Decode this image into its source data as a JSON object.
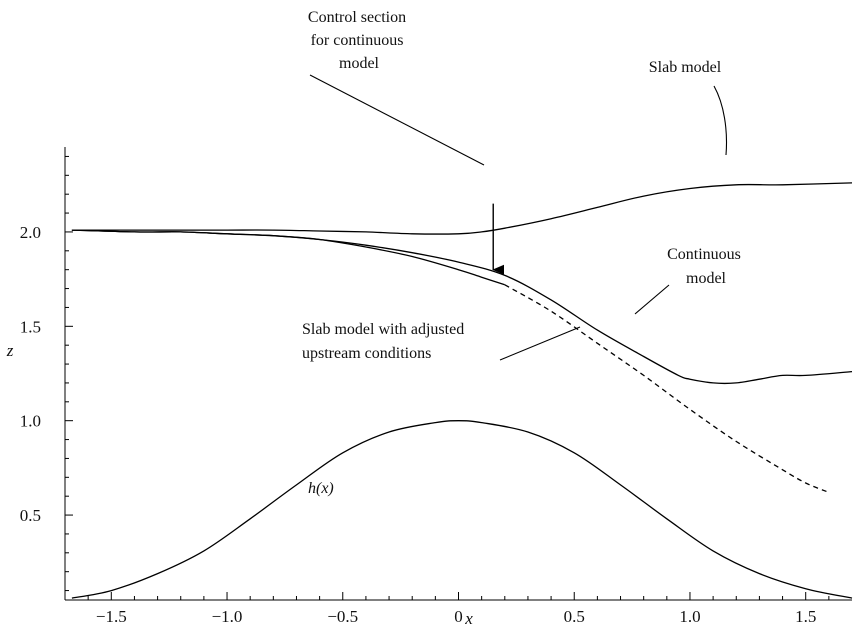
{
  "chart_data": {
    "type": "line",
    "xlabel": "x",
    "ylabel": "z",
    "xlim": [
      -1.7,
      1.7
    ],
    "ylim": [
      0.05,
      2.45
    ],
    "grid": false,
    "xticks": [
      {
        "value": -1.5,
        "label": "−1.5"
      },
      {
        "value": -1.0,
        "label": "−1.0"
      },
      {
        "value": -0.5,
        "label": "−0.5"
      },
      {
        "value": 0.0,
        "label": "0"
      },
      {
        "value": 0.5,
        "label": "0.5"
      },
      {
        "value": 1.0,
        "label": "1.0"
      },
      {
        "value": 1.5,
        "label": "1.5"
      }
    ],
    "yticks": [
      {
        "value": 0.5,
        "label": "0.5"
      },
      {
        "value": 1.0,
        "label": "1.0"
      },
      {
        "value": 1.5,
        "label": "1.5"
      },
      {
        "value": 2.0,
        "label": "2.0"
      }
    ],
    "series": [
      {
        "id": "slab",
        "style": "solid",
        "x": [
          -1.67,
          -1.4,
          -1.2,
          -1.0,
          -0.8,
          -0.6,
          -0.4,
          -0.2,
          0.0,
          0.1,
          0.2,
          0.4,
          0.6,
          0.8,
          1.0,
          1.2,
          1.4,
          1.7
        ],
        "y": [
          2.01,
          2.01,
          2.01,
          2.01,
          2.01,
          2.005,
          2.0,
          1.99,
          1.99,
          2.0,
          2.02,
          2.07,
          2.13,
          2.19,
          2.23,
          2.25,
          2.25,
          2.26
        ]
      },
      {
        "id": "continuous",
        "style": "solid",
        "x": [
          -1.67,
          -1.4,
          -1.2,
          -1.0,
          -0.8,
          -0.6,
          -0.4,
          -0.2,
          0.0,
          0.2,
          0.4,
          0.6,
          0.8,
          0.95,
          1.0,
          1.1,
          1.2,
          1.3,
          1.4,
          1.5,
          1.7
        ],
        "y": [
          2.01,
          2.0,
          2.0,
          1.99,
          1.98,
          1.96,
          1.93,
          1.89,
          1.84,
          1.77,
          1.64,
          1.48,
          1.34,
          1.24,
          1.22,
          1.2,
          1.2,
          1.22,
          1.24,
          1.24,
          1.26
        ]
      },
      {
        "id": "slab-adjusted",
        "style": "solid",
        "x": [
          -1.67,
          -1.4,
          -1.2,
          -1.0,
          -0.8,
          -0.6,
          -0.4,
          -0.2,
          0.0,
          0.1,
          0.2
        ],
        "y": [
          2.01,
          2.0,
          2.0,
          1.99,
          1.98,
          1.96,
          1.92,
          1.87,
          1.8,
          1.76,
          1.72
        ]
      },
      {
        "id": "slab-adjusted-dashed",
        "style": "dashed",
        "x": [
          0.2,
          0.4,
          0.6,
          0.8,
          1.0,
          1.2,
          1.4,
          1.5,
          1.6
        ],
        "y": [
          1.72,
          1.58,
          1.41,
          1.24,
          1.06,
          0.89,
          0.74,
          0.67,
          0.62
        ]
      },
      {
        "id": "topography",
        "style": "solid",
        "x": [
          -1.67,
          -1.5,
          -1.3,
          -1.1,
          -0.9,
          -0.7,
          -0.5,
          -0.3,
          -0.1,
          0.0,
          0.1,
          0.3,
          0.5,
          0.7,
          0.9,
          1.1,
          1.3,
          1.5,
          1.7
        ],
        "y": [
          0.06,
          0.1,
          0.19,
          0.31,
          0.48,
          0.66,
          0.83,
          0.94,
          0.99,
          1.0,
          0.99,
          0.94,
          0.83,
          0.66,
          0.48,
          0.31,
          0.19,
          0.11,
          0.06
        ]
      }
    ],
    "annotations": [
      {
        "id": "control-section",
        "lines": [
          "Control section",
          "for continuous",
          "model"
        ]
      },
      {
        "id": "slab-model",
        "lines": [
          "Slab model"
        ]
      },
      {
        "id": "continuous-model",
        "lines": [
          "Continuous",
          "model"
        ]
      },
      {
        "id": "slab-adjusted",
        "lines": [
          "Slab model with adjusted",
          "upstream conditions"
        ]
      },
      {
        "id": "hx",
        "lines": [
          "h(x)"
        ]
      }
    ],
    "arrow": {
      "x": 0.15,
      "y_from": 2.15,
      "y_to": 1.8
    }
  }
}
